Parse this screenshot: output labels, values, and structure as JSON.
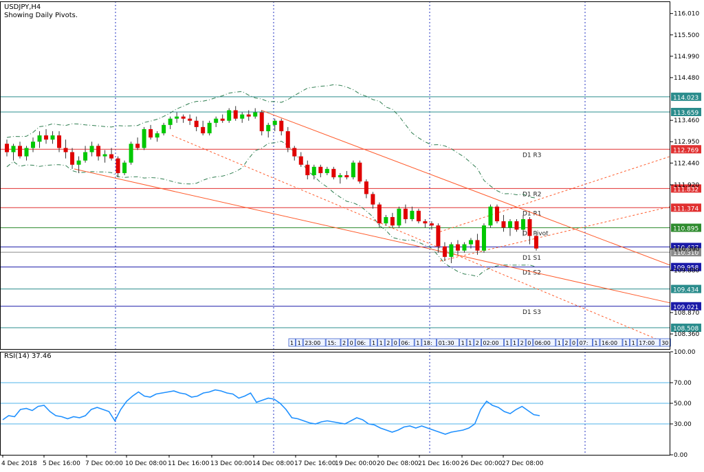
{
  "header": {
    "symbol": "USDJPY,H4",
    "subtitle": "Showing Daily Pivots."
  },
  "colors": {
    "bull": "#00c800",
    "bear": "#e00000",
    "pivot_red": "#e03030",
    "pivot_green": "#2e8b2e",
    "pivot_blue": "#1a1aa8",
    "pivot_teal": "#2a8c8c",
    "trend": "#ff5a2a",
    "bands": "#2e7d4f",
    "rsi": "#1e90ff",
    "rsi_level": "#4fb3e8",
    "axis": "#1a1a9a"
  },
  "price_axis": {
    "range": [
      108.0,
      116.3
    ],
    "ticks": [
      "116.010",
      "115.500",
      "114.990",
      "114.480",
      "113.460",
      "112.950",
      "112.440",
      "111.920",
      "110.390",
      "109.880",
      "108.870",
      "108.360"
    ]
  },
  "pivot_levels": [
    {
      "name": "",
      "value": 114.023,
      "label": "114.023",
      "kind": "teal"
    },
    {
      "name": "",
      "value": 113.659,
      "label": "113.659",
      "kind": "teal"
    },
    {
      "name": "D1 R3",
      "value": 112.769,
      "label": "112.769",
      "kind": "red"
    },
    {
      "name": "D1 R2",
      "value": 111.832,
      "label": "111.832",
      "kind": "red"
    },
    {
      "name": "D1 R1",
      "value": 111.374,
      "label": "111.374",
      "kind": "red"
    },
    {
      "name": "D1 Pivot",
      "value": 110.895,
      "label": "110.895",
      "kind": "green"
    },
    {
      "name": "",
      "value": 110.437,
      "label": "110.437",
      "kind": "blue"
    },
    {
      "name": "D1 S1",
      "value": 110.31,
      "label": "110.310",
      "kind": "gray"
    },
    {
      "name": "D1 S2",
      "value": 109.958,
      "label": "109.958",
      "kind": "blue"
    },
    {
      "name": "",
      "value": 109.434,
      "label": "109.434",
      "kind": "teal"
    },
    {
      "name": "D1 S3",
      "value": 109.021,
      "label": "109.021",
      "kind": "blue"
    },
    {
      "name": "",
      "value": 108.508,
      "label": "108.508",
      "kind": "teal"
    }
  ],
  "chart_data": {
    "type": "candlestick",
    "title": "USDJPY,H4",
    "x_axis_labels": [
      "4 Dec 2018",
      "5 Dec 16:00",
      "7 Dec 00:00",
      "10 Dec 08:00",
      "11 Dec 16:00",
      "13 Dec 00:00",
      "14 Dec 08:00",
      "17 Dec 16:00",
      "19 Dec 00:00",
      "20 Dec 08:00",
      "21 Dec 16:00",
      "26 Dec 00:00",
      "27 Dec 08:00"
    ],
    "ylim": [
      108.0,
      116.3
    ],
    "series": [
      {
        "name": "",
        "type": "candlestick",
        "ohlc": [
          [
            112.9,
            113.0,
            112.6,
            112.7
          ],
          [
            112.7,
            112.9,
            112.5,
            112.85
          ],
          [
            112.85,
            112.95,
            112.55,
            112.6
          ],
          [
            112.6,
            112.85,
            112.5,
            112.8
          ],
          [
            112.8,
            113.05,
            112.7,
            112.95
          ],
          [
            112.95,
            113.2,
            112.8,
            113.1
          ],
          [
            113.1,
            113.25,
            112.9,
            113.0
          ],
          [
            113.0,
            113.2,
            112.9,
            113.1
          ],
          [
            113.1,
            113.2,
            112.7,
            112.8
          ],
          [
            112.8,
            113.0,
            112.55,
            112.7
          ],
          [
            112.7,
            112.8,
            112.3,
            112.4
          ],
          [
            112.4,
            112.6,
            112.2,
            112.5
          ],
          [
            112.5,
            112.85,
            112.45,
            112.7
          ],
          [
            112.7,
            112.95,
            112.6,
            112.85
          ],
          [
            112.85,
            112.9,
            112.5,
            112.6
          ],
          [
            112.6,
            112.75,
            112.45,
            112.65
          ],
          [
            112.65,
            112.8,
            112.5,
            112.55
          ],
          [
            112.55,
            112.6,
            112.1,
            112.2
          ],
          [
            112.2,
            112.5,
            112.15,
            112.45
          ],
          [
            112.45,
            112.95,
            112.4,
            112.9
          ],
          [
            112.9,
            113.05,
            112.75,
            112.8
          ],
          [
            112.8,
            113.3,
            112.75,
            113.25
          ],
          [
            113.25,
            113.35,
            113.0,
            113.05
          ],
          [
            113.05,
            113.2,
            112.95,
            113.15
          ],
          [
            113.15,
            113.4,
            113.1,
            113.35
          ],
          [
            113.35,
            113.55,
            113.25,
            113.5
          ],
          [
            113.5,
            113.65,
            113.4,
            113.55
          ],
          [
            113.55,
            113.6,
            113.4,
            113.5
          ],
          [
            113.5,
            113.6,
            113.35,
            113.45
          ],
          [
            113.45,
            113.55,
            113.2,
            113.3
          ],
          [
            113.3,
            113.45,
            113.1,
            113.15
          ],
          [
            113.15,
            113.45,
            113.1,
            113.4
          ],
          [
            113.4,
            113.55,
            113.3,
            113.5
          ],
          [
            113.5,
            113.6,
            113.4,
            113.45
          ],
          [
            113.45,
            113.75,
            113.4,
            113.7
          ],
          [
            113.7,
            113.8,
            113.45,
            113.5
          ],
          [
            113.5,
            113.65,
            113.4,
            113.6
          ],
          [
            113.6,
            113.7,
            113.45,
            113.55
          ],
          [
            113.55,
            113.75,
            113.5,
            113.65
          ],
          [
            113.65,
            113.7,
            113.1,
            113.2
          ],
          [
            113.2,
            113.4,
            113.05,
            113.35
          ],
          [
            113.35,
            113.5,
            113.2,
            113.45
          ],
          [
            113.45,
            113.5,
            113.1,
            113.2
          ],
          [
            113.2,
            113.3,
            112.7,
            112.8
          ],
          [
            112.8,
            112.85,
            112.5,
            112.6
          ],
          [
            112.6,
            112.7,
            112.35,
            112.4
          ],
          [
            112.4,
            112.5,
            112.05,
            112.15
          ],
          [
            112.15,
            112.4,
            112.05,
            112.35
          ],
          [
            112.35,
            112.4,
            112.1,
            112.2
          ],
          [
            112.2,
            112.35,
            112.15,
            112.3
          ],
          [
            112.3,
            112.35,
            112.05,
            112.1
          ],
          [
            112.1,
            112.2,
            111.95,
            112.15
          ],
          [
            112.15,
            112.25,
            112.05,
            112.1
          ],
          [
            112.1,
            112.5,
            112.05,
            112.45
          ],
          [
            112.45,
            112.5,
            111.95,
            112.0
          ],
          [
            112.0,
            112.05,
            111.6,
            111.7
          ],
          [
            111.7,
            111.75,
            111.35,
            111.45
          ],
          [
            111.45,
            111.5,
            110.9,
            111.0
          ],
          [
            111.0,
            111.2,
            110.95,
            111.15
          ],
          [
            111.15,
            111.25,
            110.9,
            110.95
          ],
          [
            110.95,
            111.4,
            110.9,
            111.35
          ],
          [
            111.35,
            111.45,
            111.0,
            111.1
          ],
          [
            111.1,
            111.4,
            111.05,
            111.3
          ],
          [
            111.3,
            111.35,
            111.0,
            111.05
          ],
          [
            111.05,
            111.1,
            110.9,
            111.0
          ],
          [
            111.0,
            111.05,
            110.85,
            110.95
          ],
          [
            110.95,
            111.0,
            110.3,
            110.45
          ],
          [
            110.45,
            110.55,
            110.1,
            110.2
          ],
          [
            110.2,
            110.55,
            110.05,
            110.5
          ],
          [
            110.5,
            110.6,
            110.25,
            110.35
          ],
          [
            110.35,
            110.55,
            110.3,
            110.5
          ],
          [
            110.5,
            110.65,
            110.4,
            110.6
          ],
          [
            110.6,
            110.75,
            110.25,
            110.35
          ],
          [
            110.35,
            111.0,
            110.3,
            110.95
          ],
          [
            110.95,
            111.45,
            110.9,
            111.4
          ],
          [
            111.4,
            111.45,
            111.0,
            111.05
          ],
          [
            111.05,
            111.2,
            110.8,
            110.9
          ],
          [
            110.9,
            111.1,
            110.7,
            111.05
          ],
          [
            111.05,
            111.1,
            110.8,
            110.85
          ],
          [
            110.85,
            111.2,
            110.7,
            111.1
          ],
          [
            111.1,
            111.15,
            110.5,
            110.7
          ],
          [
            110.7,
            110.8,
            110.35,
            110.4
          ]
        ]
      }
    ],
    "sub_chart": {
      "type": "line",
      "title": "RSI(14) 37.46",
      "ylim": [
        0,
        100
      ],
      "ticks": [
        "100.00",
        "70.00",
        "50.00",
        "30.00",
        "0.00"
      ],
      "levels": [
        70,
        50,
        30
      ],
      "values": [
        34,
        38,
        37,
        44,
        45,
        43,
        47,
        48,
        42,
        38,
        37,
        35,
        37,
        36,
        38,
        44,
        46,
        44,
        42,
        33,
        44,
        52,
        57,
        61,
        57,
        56,
        59,
        60,
        61,
        62,
        60,
        59,
        56,
        57,
        60,
        61,
        63,
        62,
        60,
        59,
        55,
        57,
        60,
        51,
        53,
        55,
        54,
        50,
        44,
        36,
        35,
        33,
        31,
        30,
        32,
        33,
        32,
        31,
        30,
        33,
        36,
        34,
        30,
        29,
        26,
        24,
        22,
        24,
        27,
        28,
        26,
        28,
        26,
        24,
        22,
        20,
        22,
        23,
        24,
        26,
        30,
        44,
        52,
        48,
        46,
        42,
        40,
        44,
        47,
        43,
        39,
        38
      ]
    }
  },
  "time_strip": {
    "cells": [
      "1",
      "1",
      "23:00",
      "15:",
      "2",
      "0",
      "06:",
      "1",
      "1",
      "2",
      "0",
      "06:",
      "1",
      "18:",
      "01:30",
      "1",
      "1",
      "2",
      "02:00",
      "1",
      "1",
      "2",
      "0",
      "06:00",
      "1",
      "2",
      "0",
      "07:",
      "1",
      "16:00",
      "1",
      "1",
      "17:00",
      "30"
    ]
  }
}
